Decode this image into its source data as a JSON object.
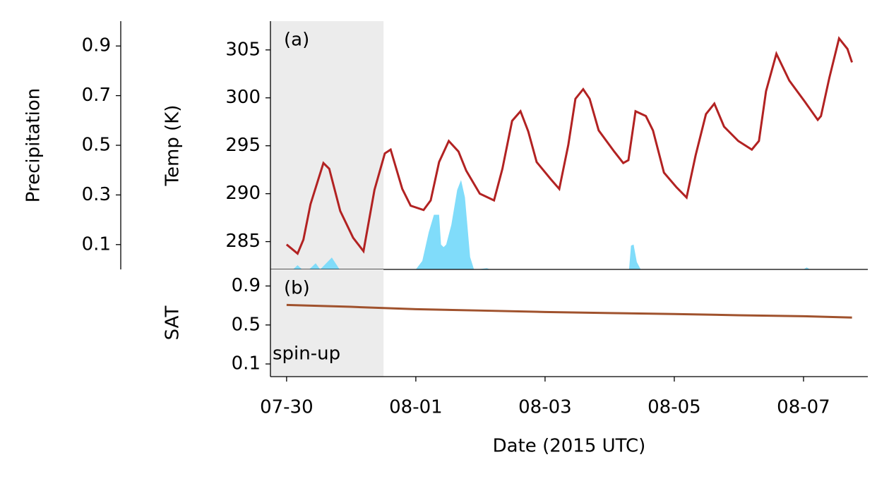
{
  "spin_up": {
    "label": "spin-up",
    "xlim": [
      -0.25,
      1.5
    ],
    "color": "#ececec"
  },
  "chart_data": [
    {
      "type": "line",
      "label": "(a)",
      "ylabel": "Temp (K)",
      "y2label": "Precipitation",
      "xlim": [
        -0.25,
        8.995
      ],
      "ylim": [
        282.1,
        308
      ],
      "yticks": [
        285,
        290,
        295,
        300,
        305
      ],
      "y2lim": [
        0,
        1
      ],
      "y2ticks": [
        0.1,
        0.3,
        0.5,
        0.7,
        0.9
      ],
      "series": [
        {
          "name": "Temp",
          "color": "#b22222",
          "x": [
            0,
            0.17,
            0.26,
            0.37,
            0.57,
            0.66,
            0.83,
            1.03,
            1.19,
            1.36,
            1.52,
            1.61,
            1.79,
            1.92,
            2.12,
            2.23,
            2.36,
            2.51,
            2.66,
            2.78,
            2.99,
            3.21,
            3.34,
            3.49,
            3.62,
            3.74,
            3.87,
            4.09,
            4.22,
            4.36,
            4.47,
            4.59,
            4.69,
            4.83,
            5.07,
            5.21,
            5.29,
            5.4,
            5.56,
            5.67,
            5.84,
            6.03,
            6.19,
            6.33,
            6.49,
            6.62,
            6.77,
            6.99,
            7.2,
            7.31,
            7.42,
            7.58,
            7.78,
            8.02,
            8.22,
            8.27,
            8.4,
            8.55,
            8.68,
            8.75
          ],
          "values": [
            284.7,
            283.75,
            285.2,
            288.9,
            293.2,
            292.6,
            288.2,
            285.4,
            284.0,
            290.4,
            294.2,
            294.6,
            290.5,
            288.75,
            288.3,
            289.3,
            293.3,
            295.5,
            294.4,
            292.4,
            290.0,
            289.3,
            292.6,
            297.6,
            298.6,
            296.5,
            293.3,
            291.5,
            290.5,
            295.1,
            299.9,
            300.9,
            299.9,
            296.6,
            294.4,
            293.2,
            293.5,
            298.6,
            298.1,
            296.6,
            292.2,
            290.7,
            289.6,
            294.0,
            298.3,
            299.4,
            297.0,
            295.5,
            294.6,
            295.5,
            300.7,
            304.6,
            301.8,
            299.6,
            297.7,
            298.1,
            302.1,
            306.2,
            305.1,
            303.7
          ]
        },
        {
          "name": "Precipitation",
          "color": "#80dcfa",
          "axis": "y2",
          "kind": "area",
          "x": [
            0,
            0.1,
            0.17,
            0.24,
            0.35,
            0.45,
            0.52,
            0.7,
            0.82,
            0.9,
            1.0,
            2.0,
            2.1,
            2.2,
            2.28,
            2.36,
            2.39,
            2.43,
            2.47,
            2.55,
            2.64,
            2.7,
            2.76,
            2.84,
            2.9,
            2.95,
            3.1,
            3.15,
            3.2,
            5.3,
            5.33,
            5.37,
            5.42,
            5.48,
            5.56,
            8.0,
            8.05,
            8.1,
            8.75
          ],
          "values": [
            0,
            0,
            0.017,
            0,
            0,
            0.025,
            0,
            0.048,
            0,
            0,
            0,
            0,
            0.034,
            0.15,
            0.22,
            0.22,
            0.1,
            0.09,
            0.1,
            0.18,
            0.32,
            0.36,
            0.29,
            0.05,
            0,
            0,
            0.005,
            0,
            0,
            0,
            0.096,
            0.1,
            0.03,
            0,
            0,
            0,
            0.008,
            0,
            0
          ]
        }
      ]
    },
    {
      "type": "line",
      "label": "(b)",
      "ylabel": "SAT",
      "xlabel": "Date (2015 UTC)",
      "xlim": [
        -0.25,
        8.995
      ],
      "ylim": [
        -0.03,
        1.07
      ],
      "yticks": [
        0.1,
        0.5,
        0.9
      ],
      "xticks": [
        {
          "value": 0,
          "label": "07-30"
        },
        {
          "value": 2,
          "label": "08-01"
        },
        {
          "value": 4,
          "label": "08-03"
        },
        {
          "value": 6,
          "label": "08-05"
        },
        {
          "value": 8,
          "label": "08-07"
        }
      ],
      "series": [
        {
          "name": "SAT",
          "color": "#a0522d",
          "x": [
            0,
            1,
            2,
            3,
            4,
            5,
            6,
            7,
            8,
            8.75
          ],
          "values": [
            0.705,
            0.686,
            0.662,
            0.648,
            0.633,
            0.622,
            0.612,
            0.6,
            0.59,
            0.576
          ]
        }
      ]
    }
  ]
}
